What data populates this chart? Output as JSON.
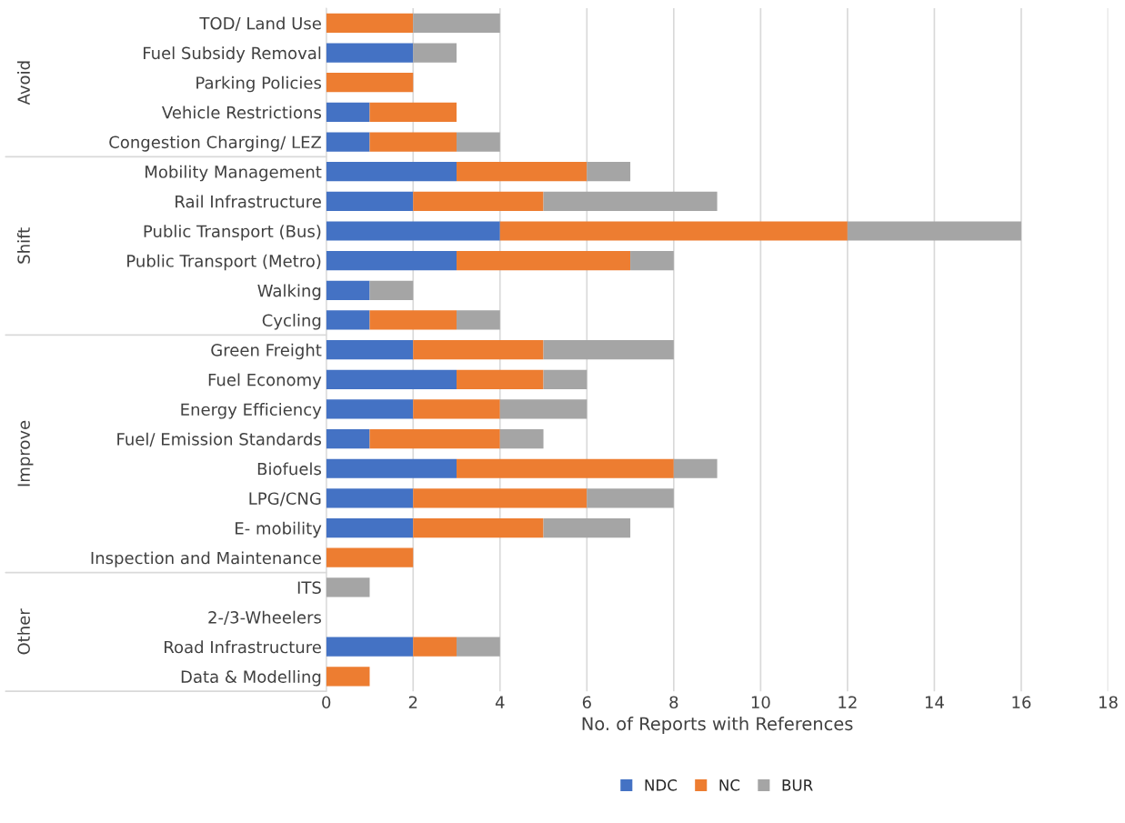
{
  "chart_data": {
    "type": "bar",
    "orientation": "horizontal",
    "stacked": true,
    "xlabel": "No. of Reports with References",
    "categories": [
      "TOD/ Land Use",
      "Fuel Subsidy Removal",
      "Parking Policies",
      "Vehicle Restrictions",
      "Congestion Charging/ LEZ",
      "Mobility Management",
      "Rail Infrastructure",
      "Public Transport (Bus)",
      "Public Transport (Metro)",
      "Walking",
      "Cycling",
      "Green Freight",
      "Fuel Economy",
      "Energy Efficiency",
      "Fuel/ Emission Standards",
      "Biofuels",
      "LPG/CNG",
      "E- mobility",
      "Inspection and Maintenance",
      "ITS",
      "2-/3-Wheelers",
      "Road Infrastructure",
      "Data & Modelling"
    ],
    "series": [
      {
        "name": "NDC",
        "color": "#4472c4",
        "values": [
          0,
          2,
          0,
          1,
          1,
          3,
          2,
          4,
          3,
          1,
          1,
          2,
          3,
          2,
          1,
          3,
          2,
          2,
          0,
          0,
          0,
          2,
          0
        ]
      },
      {
        "name": "NC",
        "color": "#ed7d31",
        "values": [
          2,
          0,
          2,
          2,
          2,
          3,
          3,
          8,
          4,
          0,
          2,
          3,
          2,
          2,
          3,
          5,
          4,
          3,
          2,
          0,
          0,
          1,
          1
        ]
      },
      {
        "name": "BUR",
        "color": "#a5a5a5",
        "values": [
          2,
          1,
          0,
          0,
          1,
          1,
          4,
          4,
          1,
          1,
          1,
          3,
          1,
          2,
          1,
          1,
          2,
          2,
          0,
          1,
          0,
          1,
          0
        ]
      }
    ],
    "xlim": [
      0,
      18
    ],
    "xticks": [
      0,
      2,
      4,
      6,
      8,
      10,
      12,
      14,
      16,
      18
    ],
    "grid": "x",
    "legend": "bottom",
    "annotations": [
      "Avoid",
      "Shift",
      "Improve",
      "Other"
    ]
  }
}
